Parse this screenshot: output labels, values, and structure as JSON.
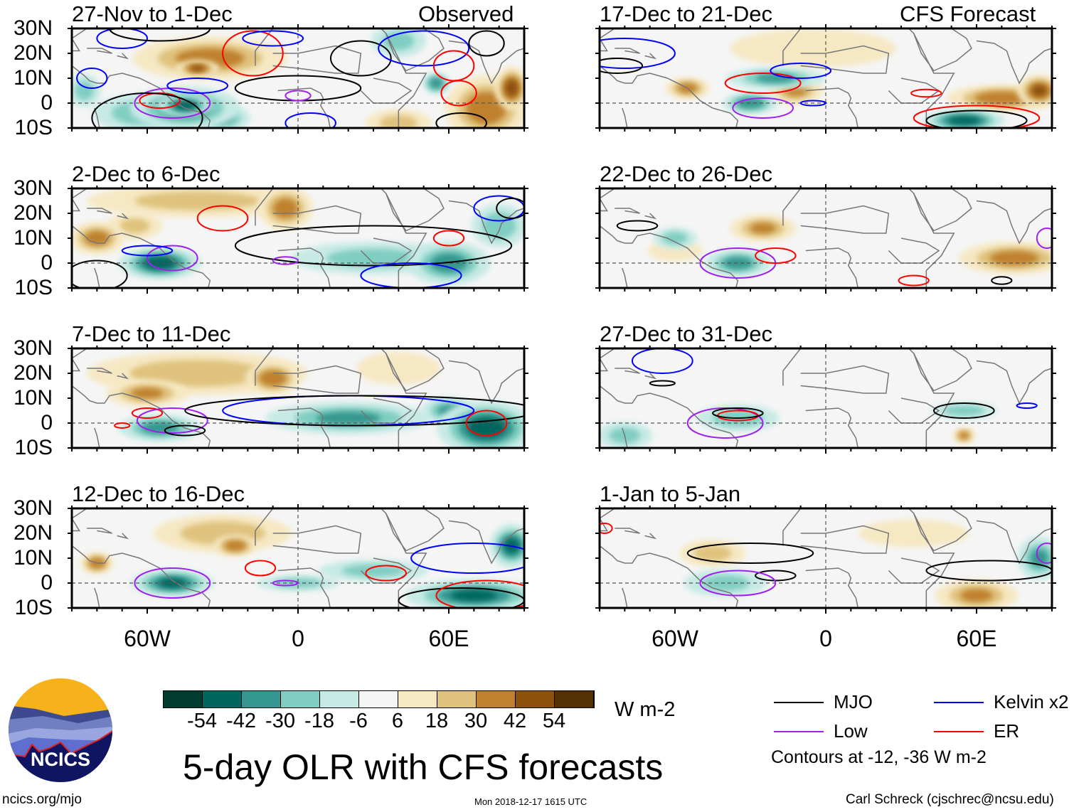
{
  "title": "5-day OLR with CFS forecasts",
  "left_header": "Observed",
  "right_header": "CFS Forecast",
  "lat_labels": [
    "30N",
    "20N",
    "10N",
    "0",
    "10S"
  ],
  "lon_labels": [
    "60W",
    "0",
    "60E"
  ],
  "units": "W m-2",
  "colorbar": {
    "labels": [
      "-54",
      "-42",
      "-30",
      "-18",
      "-6",
      "6",
      "18",
      "30",
      "42",
      "54"
    ],
    "colors": [
      "#003c30",
      "#01665e",
      "#35978f",
      "#80cdc1",
      "#c7eae5",
      "#f5f5f5",
      "#f6e8c3",
      "#dfc27d",
      "#bf812d",
      "#8c510a",
      "#543005"
    ]
  },
  "legend": {
    "items": [
      {
        "label": "MJO",
        "color": "#000000"
      },
      {
        "label": "Kelvin x2",
        "color": "#0000ff"
      },
      {
        "label": "Low",
        "color": "#a020f0"
      },
      {
        "label": "ER",
        "color": "#ff0000"
      }
    ],
    "note": "Contours at -12, -36 W m-2"
  },
  "footer": {
    "url": "ncics.org/mjo",
    "timestamp": "Mon 2018-12-17 1615 UTC",
    "author": "Carl Schreck (cjschrec@ncsu.edu)"
  },
  "logo_text": "NCICS",
  "chart_data": {
    "type": "heatmap",
    "lon_range": [
      -90,
      90
    ],
    "lat_range": [
      -10,
      30
    ],
    "panels": [
      {
        "period": "27-Nov to 1-Dec",
        "kind": "Observed",
        "anomalies": [
          [
            -35,
            18,
            28,
            8,
            35
          ],
          [
            -40,
            14,
            8,
            3,
            45
          ],
          [
            -45,
            -2,
            20,
            8,
            -40
          ],
          [
            -62,
            -4,
            18,
            7,
            -25
          ],
          [
            -30,
            -6,
            10,
            5,
            -30
          ],
          [
            -45,
            -1,
            10,
            4,
            -50
          ],
          [
            40,
            25,
            10,
            6,
            -20
          ],
          [
            75,
            -2,
            15,
            12,
            40
          ],
          [
            85,
            6,
            6,
            8,
            50
          ],
          [
            55,
            8,
            5,
            4,
            -40
          ],
          [
            40,
            -8,
            12,
            5,
            20
          ],
          [
            -85,
            5,
            6,
            6,
            -20
          ]
        ],
        "contours": [
          [
            "ER",
            -18,
            20,
            12,
            9
          ],
          [
            "Kelvin",
            -70,
            26,
            10,
            4
          ],
          [
            "MJO",
            -55,
            30,
            20,
            5
          ],
          [
            "Kelvin",
            -82,
            10,
            6,
            4
          ],
          [
            "Kelvin",
            -10,
            26,
            12,
            3
          ],
          [
            "MJO",
            25,
            18,
            12,
            7
          ],
          [
            "Kelvin",
            50,
            22,
            18,
            7
          ],
          [
            "MJO",
            75,
            24,
            7,
            5
          ],
          [
            "ER",
            62,
            15,
            8,
            6
          ],
          [
            "ER",
            64,
            4,
            7,
            5
          ],
          [
            "ER",
            -55,
            1,
            8,
            3
          ],
          [
            "Low",
            -50,
            0,
            15,
            6
          ],
          [
            "Kelvin",
            -40,
            7,
            12,
            3
          ],
          [
            "MJO",
            0,
            6,
            25,
            5
          ],
          [
            "Low",
            0,
            3,
            5,
            2
          ],
          [
            "Kelvin",
            5,
            -8,
            10,
            4
          ],
          [
            "MJO",
            65,
            -8,
            10,
            4
          ],
          [
            "MJO",
            -60,
            -6,
            22,
            10
          ]
        ]
      },
      {
        "period": "2-Dec to 6-Dec",
        "kind": "Observed",
        "anomalies": [
          [
            -40,
            25,
            40,
            6,
            20
          ],
          [
            -80,
            10,
            10,
            6,
            35
          ],
          [
            -5,
            22,
            10,
            8,
            35
          ],
          [
            -55,
            0,
            15,
            6,
            -50
          ],
          [
            30,
            2,
            30,
            6,
            -20
          ],
          [
            60,
            0,
            15,
            8,
            -35
          ],
          [
            80,
            15,
            10,
            8,
            -25
          ],
          [
            -65,
            15,
            10,
            5,
            18
          ]
        ],
        "contours": [
          [
            "ER",
            -30,
            18,
            10,
            5
          ],
          [
            "Low",
            -50,
            2,
            10,
            5
          ],
          [
            "Kelvin",
            -60,
            5,
            10,
            2
          ],
          [
            "MJO",
            30,
            7,
            55,
            8
          ],
          [
            "ER",
            60,
            10,
            6,
            3
          ],
          [
            "Kelvin",
            45,
            -5,
            20,
            5
          ],
          [
            "MJO",
            -80,
            -5,
            12,
            6
          ],
          [
            "Kelvin",
            80,
            22,
            10,
            5
          ],
          [
            "MJO",
            85,
            22,
            6,
            4
          ],
          [
            "Low",
            -5,
            1,
            5,
            1.5
          ]
        ]
      },
      {
        "period": "7-Dec to 11-Dec",
        "kind": "Observed",
        "anomalies": [
          [
            -40,
            20,
            40,
            8,
            25
          ],
          [
            -10,
            18,
            10,
            6,
            40
          ],
          [
            -60,
            12,
            15,
            5,
            30
          ],
          [
            -55,
            -2,
            15,
            5,
            -35
          ],
          [
            20,
            2,
            30,
            6,
            -30
          ],
          [
            75,
            -2,
            18,
            10,
            -50
          ],
          [
            60,
            5,
            10,
            5,
            -30
          ],
          [
            40,
            22,
            15,
            6,
            15
          ]
        ],
        "contours": [
          [
            "ER",
            -60,
            4,
            6,
            2
          ],
          [
            "Low",
            -50,
            1,
            14,
            5
          ],
          [
            "MJO",
            -45,
            -3,
            8,
            2
          ],
          [
            "Kelvin",
            20,
            5,
            50,
            6
          ],
          [
            "MJO",
            25,
            5,
            70,
            6
          ],
          [
            "ER",
            75,
            0,
            8,
            5
          ],
          [
            "ER",
            -70,
            -1,
            3,
            1
          ]
        ]
      },
      {
        "period": "12-Dec to 16-Dec",
        "kind": "Observed",
        "anomalies": [
          [
            -30,
            20,
            25,
            7,
            25
          ],
          [
            -25,
            15,
            8,
            4,
            40
          ],
          [
            -80,
            8,
            6,
            4,
            40
          ],
          [
            -50,
            0,
            15,
            5,
            -45
          ],
          [
            0,
            0,
            15,
            3,
            -20
          ],
          [
            70,
            -5,
            25,
            6,
            -45
          ],
          [
            85,
            15,
            8,
            8,
            -45
          ],
          [
            30,
            5,
            20,
            4,
            -20
          ]
        ],
        "contours": [
          [
            "Low",
            -50,
            0,
            15,
            6
          ],
          [
            "ER",
            -15,
            6,
            6,
            3
          ],
          [
            "Kelvin",
            70,
            10,
            25,
            6
          ],
          [
            "MJO",
            65,
            -7,
            25,
            5
          ],
          [
            "ER",
            75,
            -5,
            20,
            6
          ],
          [
            "ER",
            35,
            4,
            8,
            3
          ],
          [
            "Low",
            -5,
            0,
            5,
            1
          ]
        ]
      },
      {
        "period": "17-Dec to 21-Dec",
        "kind": "CFS Forecast",
        "anomalies": [
          [
            -5,
            22,
            30,
            7,
            15
          ],
          [
            -55,
            6,
            8,
            4,
            35
          ],
          [
            -12,
            5,
            10,
            5,
            30
          ],
          [
            70,
            2,
            20,
            5,
            40
          ],
          [
            85,
            5,
            8,
            6,
            45
          ],
          [
            -20,
            10,
            18,
            4,
            -30
          ],
          [
            -30,
            0,
            10,
            4,
            -40
          ],
          [
            55,
            -7,
            15,
            4,
            -50
          ]
        ],
        "contours": [
          [
            "ER",
            -25,
            8,
            15,
            4
          ],
          [
            "Kelvin",
            -10,
            13,
            12,
            3
          ],
          [
            "Low",
            -25,
            -2,
            12,
            4
          ],
          [
            "ER",
            40,
            4,
            6,
            1.5
          ],
          [
            "ER",
            60,
            -6,
            25,
            5
          ],
          [
            "MJO",
            60,
            -7,
            20,
            4
          ],
          [
            "Kelvin",
            -80,
            20,
            20,
            6
          ],
          [
            "MJO",
            -83,
            15,
            10,
            3
          ],
          [
            "Kelvin",
            -5,
            0,
            5,
            1
          ]
        ]
      },
      {
        "period": "22-Dec to 26-Dec",
        "kind": "CFS Forecast",
        "anomalies": [
          [
            -25,
            14,
            12,
            5,
            30
          ],
          [
            75,
            2,
            20,
            6,
            35
          ],
          [
            -60,
            5,
            10,
            4,
            15
          ],
          [
            -35,
            0,
            12,
            5,
            -35
          ],
          [
            -60,
            10,
            8,
            4,
            -20
          ]
        ],
        "contours": [
          [
            "Low",
            -35,
            0,
            15,
            6
          ],
          [
            "ER",
            -20,
            3,
            8,
            3
          ],
          [
            "MJO",
            -75,
            15,
            8,
            2
          ],
          [
            "ER",
            35,
            -7,
            6,
            2
          ],
          [
            "MJO",
            70,
            -7,
            4,
            1.5
          ],
          [
            "Low",
            88,
            10,
            4,
            4
          ]
        ]
      },
      {
        "period": "27-Dec to 31-Dec",
        "kind": "CFS Forecast",
        "anomalies": [
          [
            -35,
            2,
            15,
            5,
            -25
          ],
          [
            55,
            5,
            12,
            3,
            -25
          ],
          [
            -80,
            -5,
            10,
            5,
            -20
          ],
          [
            55,
            -5,
            4,
            3,
            35
          ]
        ],
        "contours": [
          [
            "Kelvin",
            -65,
            25,
            12,
            5
          ],
          [
            "Low",
            -40,
            0,
            15,
            6
          ],
          [
            "ER",
            -35,
            3,
            8,
            2
          ],
          [
            "MJO",
            -35,
            4,
            10,
            2
          ],
          [
            "MJO",
            55,
            5,
            12,
            3
          ],
          [
            "Kelvin",
            80,
            7,
            4,
            1
          ],
          [
            "MJO",
            -65,
            16,
            5,
            1
          ]
        ]
      },
      {
        "period": "1-Jan to 5-Jan",
        "kind": "CFS Forecast",
        "anomalies": [
          [
            -45,
            12,
            12,
            5,
            20
          ],
          [
            60,
            -5,
            15,
            6,
            30
          ],
          [
            35,
            20,
            20,
            5,
            10
          ],
          [
            -40,
            0,
            15,
            5,
            -20
          ],
          [
            85,
            10,
            8,
            8,
            -30
          ]
        ],
        "contours": [
          [
            "MJO",
            -30,
            12,
            25,
            4
          ],
          [
            "MJO",
            -20,
            3,
            8,
            2
          ],
          [
            "Low",
            -35,
            0,
            15,
            5
          ],
          [
            "MJO",
            65,
            5,
            25,
            4
          ],
          [
            "Low",
            88,
            12,
            4,
            4
          ],
          [
            "ER",
            -88,
            22,
            3,
            2
          ]
        ]
      }
    ]
  }
}
